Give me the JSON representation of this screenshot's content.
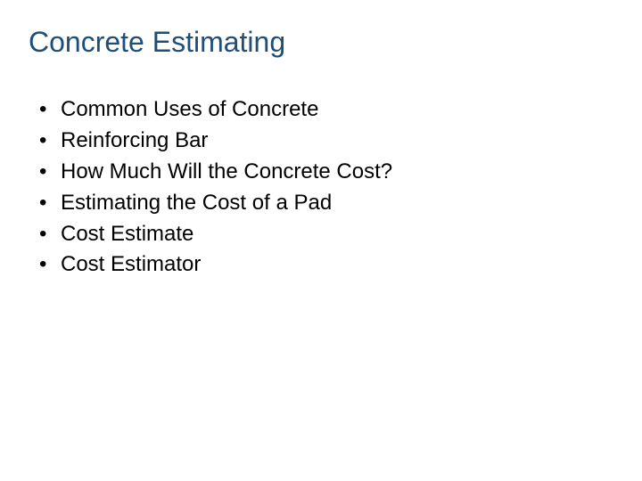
{
  "colors": {
    "title": "#1f4e79",
    "body": "#000000",
    "bullet": "#000000",
    "background": "#ffffff"
  },
  "typography": {
    "title_fontsize": 32,
    "title_weight": 400,
    "body_fontsize": 24,
    "font_family": "Arial"
  },
  "slide": {
    "title": "Concrete Estimating",
    "bullets": [
      "Common Uses of Concrete",
      "Reinforcing Bar",
      "How Much Will the Concrete Cost?",
      "Estimating the Cost of a Pad",
      "Cost Estimate",
      "Cost Estimator"
    ]
  }
}
